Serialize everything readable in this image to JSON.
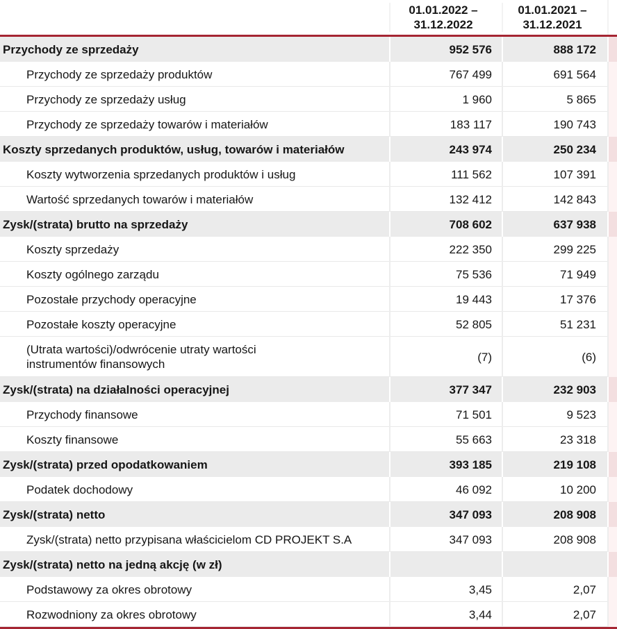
{
  "header": {
    "col_2022": {
      "line1": "01.01.2022 –",
      "line2": "31.12.2022"
    },
    "col_2021": {
      "line1": "01.01.2021 –",
      "line2": "31.12.2021"
    }
  },
  "colors": {
    "accent_red": "#a52532",
    "row_highlight_gray": "#ebebeb",
    "row_white": "#ffffff",
    "edge_strip_pink_on_white": "#fdf3f3",
    "edge_strip_pink_on_gray": "#f3dfe0",
    "text": "#161616"
  },
  "rows": [
    {
      "label": "Przychody ze sprzedaży",
      "bold": true,
      "indent": false,
      "tall": false,
      "values": [
        "952 576",
        "888 172"
      ]
    },
    {
      "label": "Przychody ze sprzedaży produktów",
      "bold": false,
      "indent": true,
      "tall": false,
      "values": [
        "767 499",
        "691 564"
      ]
    },
    {
      "label": "Przychody ze sprzedaży usług",
      "bold": false,
      "indent": true,
      "tall": false,
      "values": [
        "1 960",
        "5 865"
      ]
    },
    {
      "label": "Przychody ze sprzedaży towarów i materiałów",
      "bold": false,
      "indent": true,
      "tall": false,
      "values": [
        "183 117",
        "190 743"
      ]
    },
    {
      "label": "Koszty sprzedanych produktów, usług, towarów i materiałów",
      "bold": true,
      "indent": false,
      "tall": false,
      "values": [
        "243 974",
        "250 234"
      ]
    },
    {
      "label": "Koszty wytworzenia sprzedanych produktów i usług",
      "bold": false,
      "indent": true,
      "tall": false,
      "values": [
        "111 562",
        "107 391"
      ]
    },
    {
      "label": "Wartość sprzedanych towarów i materiałów",
      "bold": false,
      "indent": true,
      "tall": false,
      "values": [
        "132 412",
        "142 843"
      ]
    },
    {
      "label": "Zysk/(strata) brutto na sprzedaży",
      "bold": true,
      "indent": false,
      "tall": false,
      "values": [
        "708 602",
        "637 938"
      ]
    },
    {
      "label": "Koszty sprzedaży",
      "bold": false,
      "indent": true,
      "tall": false,
      "values": [
        "222 350",
        "299 225"
      ]
    },
    {
      "label": "Koszty ogólnego zarządu",
      "bold": false,
      "indent": true,
      "tall": false,
      "values": [
        "75 536",
        "71 949"
      ]
    },
    {
      "label": "Pozostałe przychody operacyjne",
      "bold": false,
      "indent": true,
      "tall": false,
      "values": [
        "19 443",
        "17 376"
      ]
    },
    {
      "label": "Pozostałe koszty operacyjne",
      "bold": false,
      "indent": true,
      "tall": false,
      "values": [
        "52 805",
        "51 231"
      ]
    },
    {
      "label": "(Utrata wartości)/odwrócenie utraty wartości\ninstrumentów finansowych",
      "bold": false,
      "indent": true,
      "tall": true,
      "values": [
        "(7)",
        "(6)"
      ]
    },
    {
      "label": "Zysk/(strata) na działalności operacyjnej",
      "bold": true,
      "indent": false,
      "tall": false,
      "values": [
        "377 347",
        "232 903"
      ]
    },
    {
      "label": "Przychody finansowe",
      "bold": false,
      "indent": true,
      "tall": false,
      "values": [
        "71 501",
        "9 523"
      ]
    },
    {
      "label": "Koszty finansowe",
      "bold": false,
      "indent": true,
      "tall": false,
      "values": [
        "55 663",
        "23 318"
      ]
    },
    {
      "label": "Zysk/(strata) przed opodatkowaniem",
      "bold": true,
      "indent": false,
      "tall": false,
      "values": [
        "393 185",
        "219 108"
      ]
    },
    {
      "label": "Podatek dochodowy",
      "bold": false,
      "indent": true,
      "tall": false,
      "values": [
        "46 092",
        "10 200"
      ]
    },
    {
      "label": "Zysk/(strata) netto",
      "bold": true,
      "indent": false,
      "tall": false,
      "values": [
        "347 093",
        "208 908"
      ]
    },
    {
      "label": "Zysk/(strata) netto przypisana właścicielom CD PROJEKT S.A",
      "bold": false,
      "indent": true,
      "tall": false,
      "values": [
        "347 093",
        "208 908"
      ]
    },
    {
      "label": "Zysk/(strata) netto na jedną akcję (w zł)",
      "bold": true,
      "indent": false,
      "tall": false,
      "values": [
        "",
        ""
      ]
    },
    {
      "label": "Podstawowy za okres obrotowy",
      "bold": false,
      "indent": true,
      "tall": false,
      "values": [
        "3,45",
        "2,07"
      ]
    },
    {
      "label": "Rozwodniony za okres obrotowy",
      "bold": false,
      "indent": true,
      "tall": false,
      "values": [
        "3,44",
        "2,07"
      ]
    }
  ]
}
